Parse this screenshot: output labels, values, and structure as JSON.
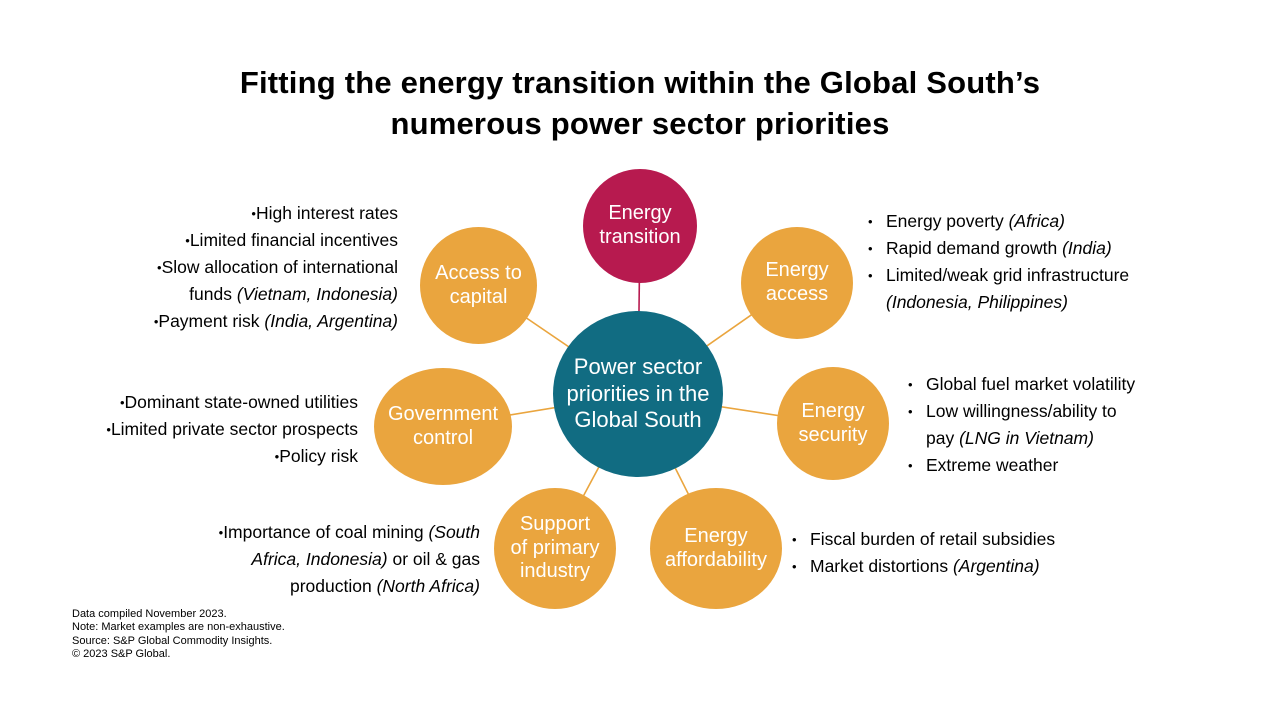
{
  "title": "Fitting the energy transition within the Global South’s\nnumerous power sector priorities",
  "colors": {
    "accent_orange": "#EAA53E",
    "accent_crimson": "#B71A4F",
    "accent_teal": "#116C82",
    "node_text": "#FFFFFF",
    "body_text": "#000000"
  },
  "hub": {
    "label": "Power sector\npriorities in the\nGlobal South"
  },
  "nodes": {
    "energy_transition": {
      "label": "Energy\ntransition"
    },
    "access_capital": {
      "label": "Access to\ncapital"
    },
    "energy_access": {
      "label": "Energy\naccess"
    },
    "government_control": {
      "label": "Government\ncontrol"
    },
    "energy_security": {
      "label": "Energy\nsecurity"
    },
    "support_primary": {
      "label": "Support\nof primary\nindustry"
    },
    "energy_affordability": {
      "label": "Energy\naffordability"
    }
  },
  "bullets": {
    "access_capital": {
      "items": [
        [
          {
            "t": "High interest rates"
          }
        ],
        [
          {
            "t": "Limited financial incentives"
          }
        ],
        [
          {
            "t": "Slow allocation of international"
          },
          {
            "br": true
          },
          {
            "t": "funds "
          },
          {
            "t": "(Vietnam, Indonesia)",
            "i": true
          }
        ],
        [
          {
            "t": "Payment risk "
          },
          {
            "t": "(India, Argentina)",
            "i": true
          }
        ]
      ]
    },
    "energy_access": {
      "items": [
        [
          {
            "t": "Energy poverty "
          },
          {
            "t": "(Africa)",
            "i": true
          }
        ],
        [
          {
            "t": "Rapid demand growth "
          },
          {
            "t": "(India)",
            "i": true
          }
        ],
        [
          {
            "t": "Limited/weak grid infrastructure"
          },
          {
            "br": true
          },
          {
            "t": "(Indonesia, Philippines)",
            "i": true
          }
        ]
      ]
    },
    "government_control": {
      "items": [
        [
          {
            "t": "Dominant state-owned utilities"
          }
        ],
        [
          {
            "t": "Limited private sector prospects"
          }
        ],
        [
          {
            "t": "Policy risk"
          }
        ]
      ]
    },
    "energy_security": {
      "items": [
        [
          {
            "t": "Global fuel market volatility"
          }
        ],
        [
          {
            "t": "Low willingness/ability to"
          },
          {
            "br": true
          },
          {
            "t": "pay "
          },
          {
            "t": "(LNG in Vietnam)",
            "i": true
          }
        ],
        [
          {
            "t": "Extreme weather"
          }
        ]
      ]
    },
    "support_primary": {
      "items": [
        [
          {
            "t": "Importance of coal mining "
          },
          {
            "t": "(South",
            "i": true
          },
          {
            "br": true
          },
          {
            "t": "Africa, Indonesia)",
            "i": true
          },
          {
            "t": " or oil & gas"
          },
          {
            "br": true
          },
          {
            "t": "production "
          },
          {
            "t": "(North Africa)",
            "i": true
          }
        ]
      ]
    },
    "energy_affordability": {
      "items": [
        [
          {
            "t": "Fiscal burden of retail subsidies"
          }
        ],
        [
          {
            "t": "Market distortions "
          },
          {
            "t": "(Argentina)",
            "i": true
          }
        ]
      ]
    }
  },
  "footer": {
    "lines": [
      "Data compiled November 2023.",
      "Note: Market examples are non-exhaustive.",
      "Source: S&P Global Commodity Insights.",
      "© 2023 S&P Global."
    ]
  }
}
